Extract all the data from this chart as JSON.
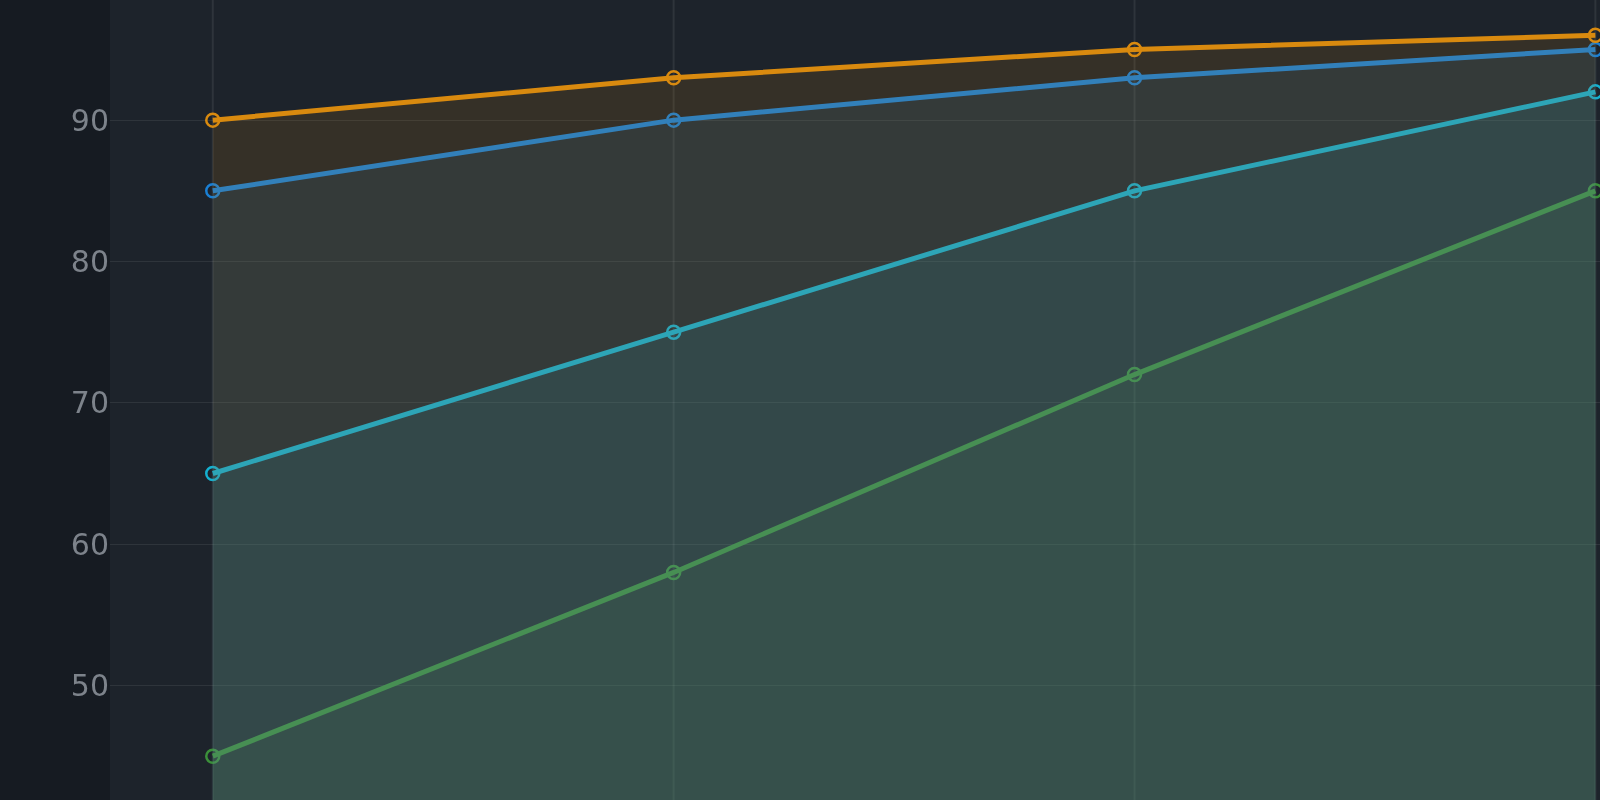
{
  "chart_data": {
    "type": "area",
    "categories": [
      null,
      null,
      null,
      null
    ],
    "series": [
      {
        "color": "#3b8f3a",
        "values": [
          45,
          58,
          72,
          85
        ]
      },
      {
        "color": "#14b0d0",
        "values": [
          65,
          75,
          85,
          92
        ]
      },
      {
        "color": "#1a7fd4",
        "values": [
          85,
          90,
          93,
          95
        ]
      },
      {
        "color": "#d98a0f",
        "values": [
          90,
          93,
          95,
          96
        ]
      }
    ],
    "ylim": [
      41.9,
      98.5
    ],
    "yticks": [
      50,
      60,
      70,
      80,
      90
    ],
    "grid": true,
    "marker": "circle",
    "line_style": "solid"
  }
}
